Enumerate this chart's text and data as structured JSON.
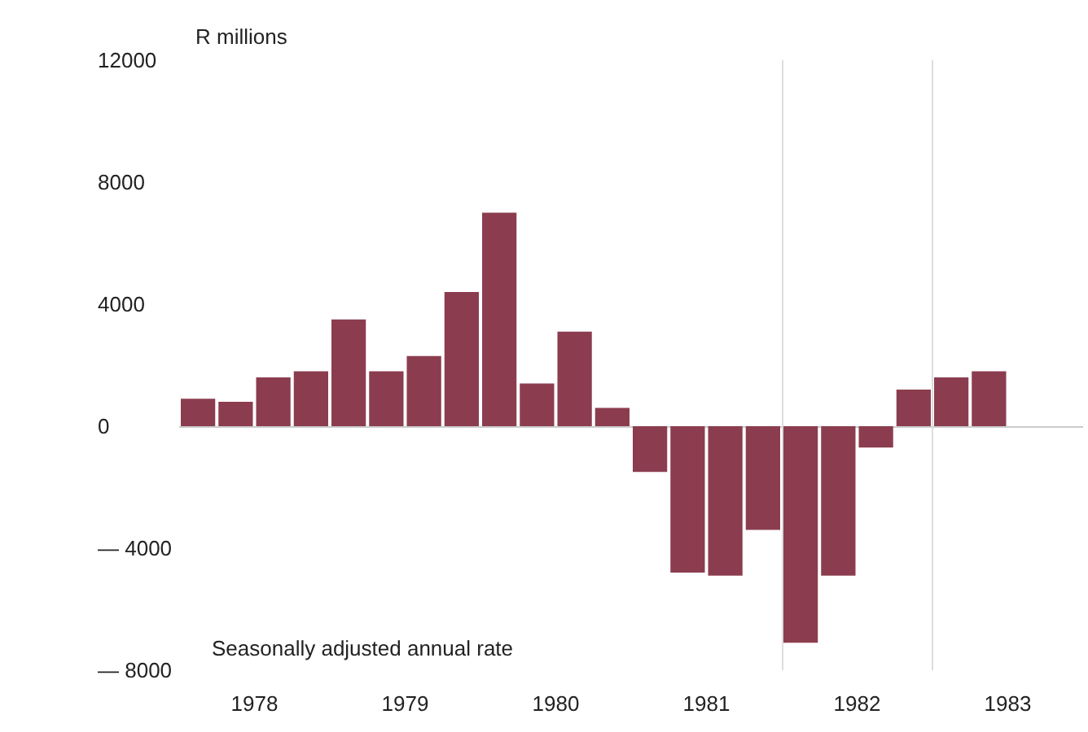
{
  "chart_data": {
    "type": "bar",
    "ylabel": "R millions",
    "annotations": [
      "Seasonally adjusted annual rate"
    ],
    "x": [
      1978.125,
      1978.375,
      1978.625,
      1978.875,
      1979.125,
      1979.375,
      1979.625,
      1979.875,
      1980.125,
      1980.375,
      1980.625,
      1980.875,
      1981.125,
      1981.375,
      1981.625,
      1981.875,
      1982.125,
      1982.375,
      1982.625,
      1982.875,
      1983.125,
      1983.375
    ],
    "values": [
      900,
      800,
      1600,
      1800,
      3500,
      1800,
      2300,
      4400,
      7000,
      1400,
      3100,
      600,
      -1500,
      -4800,
      -4900,
      -3400,
      -7100,
      -4900,
      -700,
      1200,
      1600,
      1800
    ],
    "color": "#8b3d4f",
    "xlim": [
      1978,
      1984
    ],
    "xticks": [
      {
        "value": 1978.5,
        "label": "1978"
      },
      {
        "value": 1979.5,
        "label": "1979"
      },
      {
        "value": 1980.5,
        "label": "1980"
      },
      {
        "value": 1981.5,
        "label": "1981"
      },
      {
        "value": 1982.5,
        "label": "1982"
      },
      {
        "value": 1983.5,
        "label": "1983"
      }
    ],
    "ylim": [
      -8000,
      12000
    ],
    "yticks": [
      {
        "value": -8000,
        "label": "— 8000"
      },
      {
        "value": -4000,
        "label": "— 4000"
      },
      0,
      4000,
      8000,
      12000
    ],
    "ref_lines": [
      {
        "axis": "y",
        "value": 0,
        "color": "#cccccc"
      },
      {
        "axis": "x",
        "value": 1982,
        "color": "#dddddd"
      },
      {
        "axis": "x",
        "value": 1983,
        "color": "#dddddd"
      }
    ],
    "grid": false
  }
}
